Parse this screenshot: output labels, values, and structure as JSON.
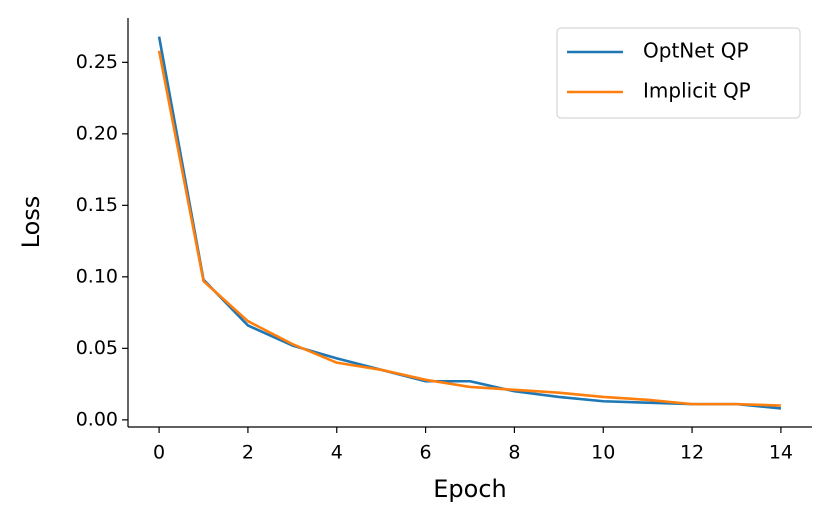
{
  "chart_data": {
    "type": "line",
    "x_label": "Epoch",
    "y_label": "Loss",
    "x": [
      0,
      1,
      2,
      3,
      4,
      5,
      6,
      7,
      8,
      9,
      10,
      11,
      12,
      13,
      14
    ],
    "series": [
      {
        "name": "OptNet QP",
        "color": "#1f77b4",
        "values": [
          0.268,
          0.098,
          0.066,
          0.052,
          0.043,
          0.035,
          0.027,
          0.027,
          0.02,
          0.016,
          0.013,
          0.012,
          0.011,
          0.011,
          0.008
        ]
      },
      {
        "name": "Implicit QP",
        "color": "#ff7f0e",
        "values": [
          0.258,
          0.097,
          0.069,
          0.053,
          0.04,
          0.035,
          0.028,
          0.023,
          0.021,
          0.019,
          0.016,
          0.014,
          0.011,
          0.011,
          0.01
        ]
      }
    ],
    "xlim": [
      -0.7,
      14.7
    ],
    "xticks": [
      0,
      2,
      4,
      6,
      8,
      10,
      12,
      14
    ],
    "ylim": [
      -0.005,
      0.281
    ],
    "yticks": [
      {
        "value": 0,
        "label": "0.00"
      },
      {
        "value": 0.05,
        "label": "0.05"
      },
      {
        "value": 0.1,
        "label": "0.10"
      },
      {
        "value": 0.15,
        "label": "0.15"
      },
      {
        "value": 0.2,
        "label": "0.20"
      },
      {
        "value": 0.25,
        "label": "0.25"
      }
    ],
    "grid": false,
    "legend": "upper right"
  }
}
